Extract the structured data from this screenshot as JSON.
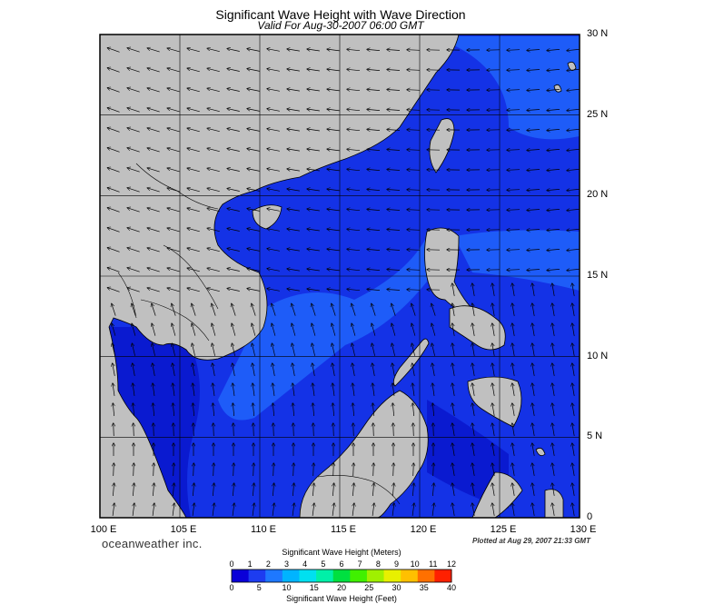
{
  "title": "Significant Wave Height with Wave Direction",
  "subtitle": "Valid For Aug-30-2007 06:00 GMT",
  "lat_labels": [
    "30 N",
    "25 N",
    "20 N",
    "15 N",
    "10 N",
    "5 N",
    "0"
  ],
  "lon_labels": [
    "100 E",
    "105 E",
    "110 E",
    "115 E",
    "120 E",
    "125 E",
    "130 E"
  ],
  "branding": "oceanweather inc.",
  "plotted_at": "Plotted at Aug 29, 2007 21:33 GMT",
  "colorbar": {
    "meters_title": "Significant Wave Height (Meters)",
    "meters_ticks": [
      "0",
      "1",
      "2",
      "3",
      "4",
      "5",
      "6",
      "7",
      "8",
      "9",
      "10",
      "11",
      "12"
    ],
    "feet_title": "Significant Wave Height (Feet)",
    "feet_ticks": [
      "0",
      "5",
      "10",
      "15",
      "20",
      "25",
      "30",
      "35",
      "40"
    ],
    "colors": [
      "#0a00d8",
      "#1d3cf0",
      "#1e78ff",
      "#00b4ff",
      "#00e0f0",
      "#00f0a8",
      "#00e040",
      "#40f000",
      "#a0f000",
      "#e8f000",
      "#ffc000",
      "#ff7000",
      "#ff2000"
    ]
  },
  "colors": {
    "land": "#c0c0c0",
    "sea_base": "#1432e6",
    "sea_light": "#1e5cf8",
    "sea_dark": "#0a1ad0",
    "sea_darkest": "#050f90"
  }
}
